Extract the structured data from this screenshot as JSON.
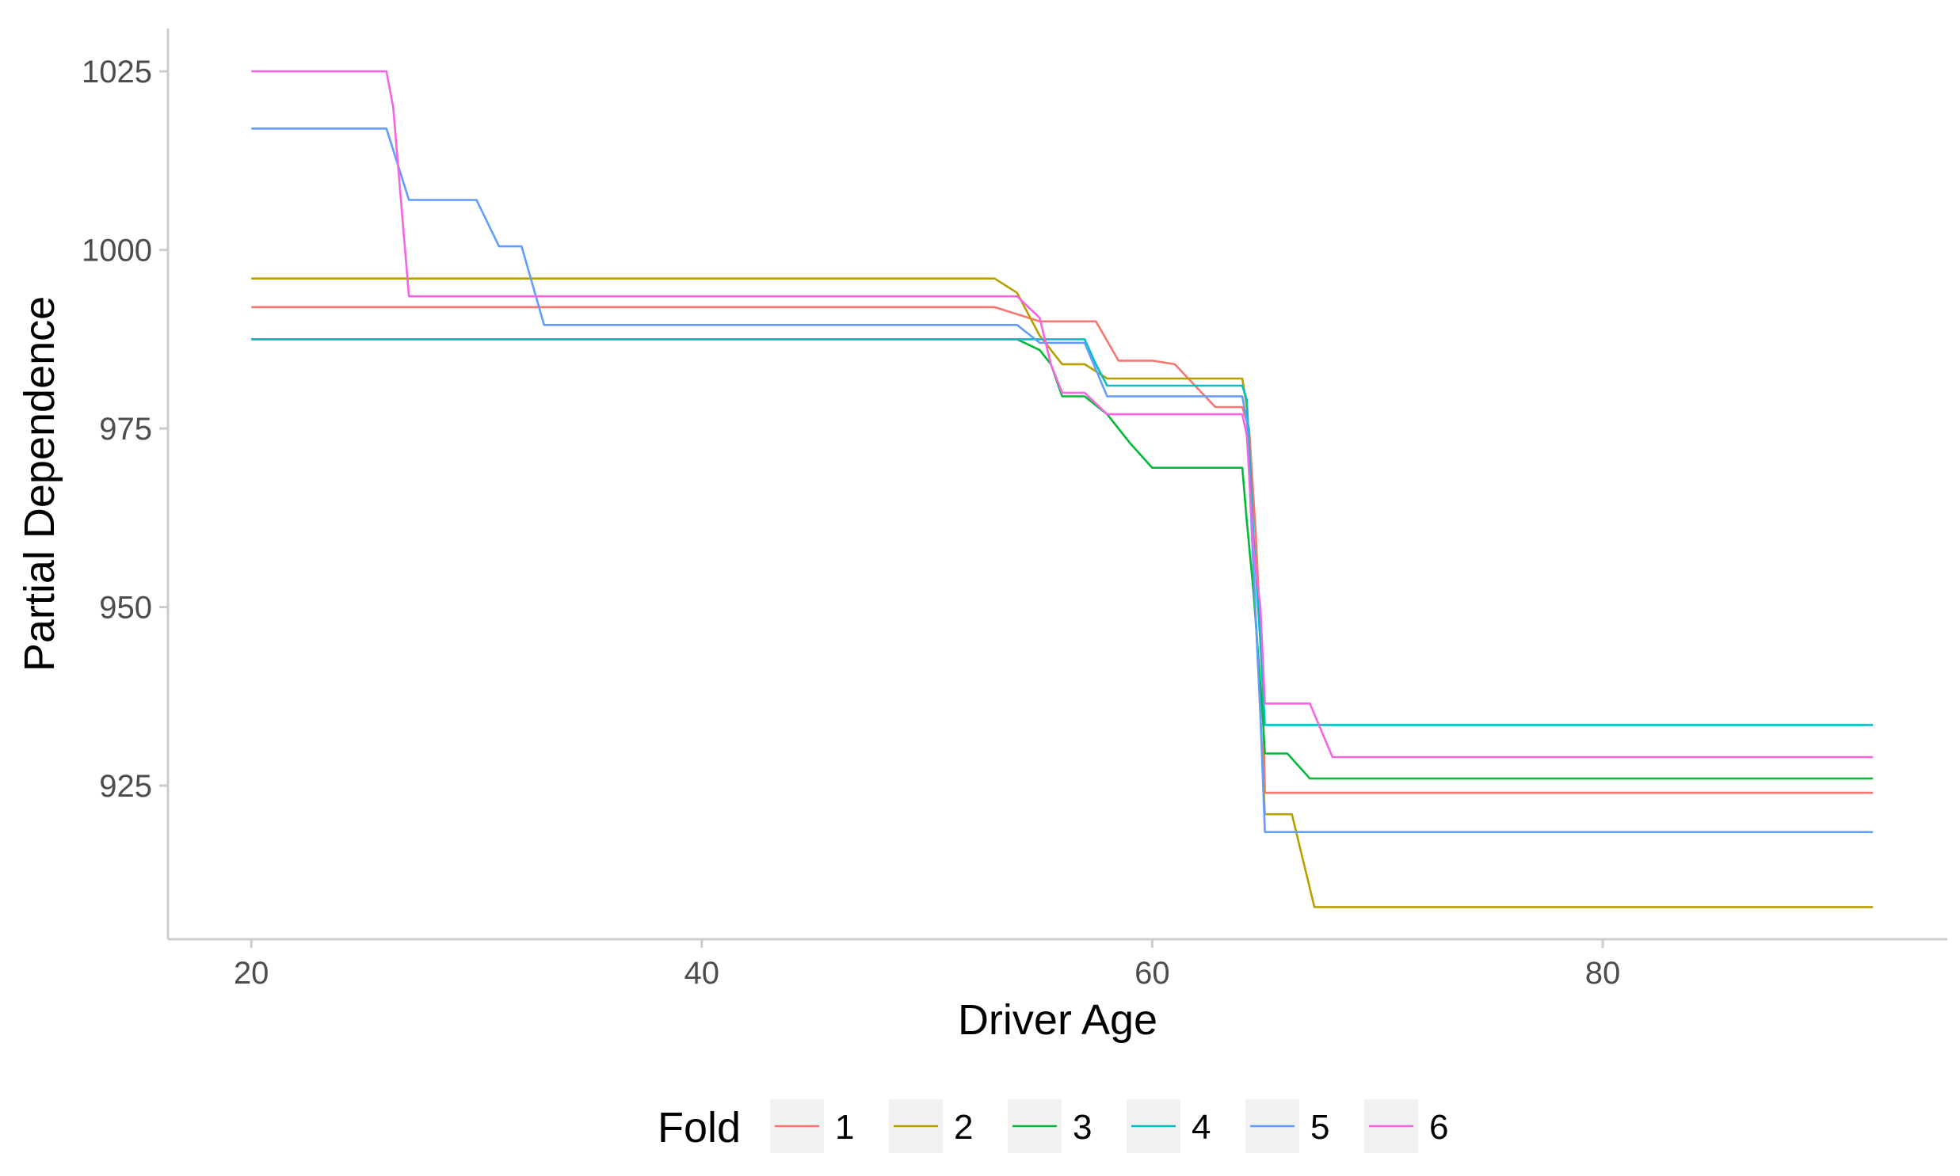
{
  "chart_data": {
    "type": "line",
    "title": "",
    "xlabel": "Driver Age",
    "ylabel": "Partial Dependence",
    "xlim": [
      16.3,
      95.3
    ],
    "ylim": [
      903.5,
      1031
    ],
    "x_ticks": [
      20,
      40,
      60,
      80
    ],
    "y_ticks": [
      925,
      950,
      975,
      1000,
      1025
    ],
    "x_tick_labels": [
      "20",
      "40",
      "60",
      "80"
    ],
    "y_tick_labels": [
      "925",
      "950",
      "975",
      "1000",
      "1025"
    ],
    "grid": false,
    "legend": {
      "title": "Fold",
      "position": "bottom"
    },
    "series": [
      {
        "name": "1",
        "color": "#F8766D",
        "points": [
          [
            20,
            992
          ],
          [
            53,
            992
          ],
          [
            54,
            991
          ],
          [
            55,
            990
          ],
          [
            57.5,
            990
          ],
          [
            58.5,
            984.5
          ],
          [
            60,
            984.5
          ],
          [
            61,
            984
          ],
          [
            62.8,
            978
          ],
          [
            64,
            978
          ],
          [
            64.3,
            975
          ],
          [
            64.6,
            960
          ],
          [
            64.9,
            940
          ],
          [
            65,
            924
          ],
          [
            92,
            924
          ]
        ]
      },
      {
        "name": "2",
        "color": "#B79F00",
        "points": [
          [
            20,
            996
          ],
          [
            53,
            996
          ],
          [
            54,
            994
          ],
          [
            55,
            988
          ],
          [
            56,
            984
          ],
          [
            57,
            984
          ],
          [
            58,
            982
          ],
          [
            64,
            982
          ],
          [
            64.2,
            978
          ],
          [
            64.5,
            955
          ],
          [
            64.8,
            935
          ],
          [
            65,
            921
          ],
          [
            66.2,
            921
          ],
          [
            67.2,
            908
          ],
          [
            92,
            908
          ]
        ]
      },
      {
        "name": "3",
        "color": "#00BA38",
        "points": [
          [
            20,
            987.5
          ],
          [
            54,
            987.5
          ],
          [
            55,
            986
          ],
          [
            55.5,
            984
          ],
          [
            56,
            979.5
          ],
          [
            57,
            979.5
          ],
          [
            58,
            977
          ],
          [
            59,
            973
          ],
          [
            60,
            969.5
          ],
          [
            64,
            969.5
          ],
          [
            64.2,
            962
          ],
          [
            64.5,
            952
          ],
          [
            64.9,
            935
          ],
          [
            65,
            929.5
          ],
          [
            66,
            929.5
          ],
          [
            67,
            926
          ],
          [
            92,
            926
          ]
        ]
      },
      {
        "name": "4",
        "color": "#00BFC4",
        "points": [
          [
            20,
            987.5
          ],
          [
            57,
            987.5
          ],
          [
            57.5,
            984
          ],
          [
            58,
            981
          ],
          [
            64,
            981
          ],
          [
            64.2,
            979
          ],
          [
            64.5,
            960
          ],
          [
            64.8,
            945
          ],
          [
            65,
            933.5
          ],
          [
            92,
            933.5
          ]
        ]
      },
      {
        "name": "5",
        "color": "#619CFF",
        "points": [
          [
            20,
            1017
          ],
          [
            26,
            1017
          ],
          [
            27,
            1007
          ],
          [
            30,
            1007
          ],
          [
            31,
            1000.5
          ],
          [
            32,
            1000.5
          ],
          [
            33,
            989.5
          ],
          [
            54,
            989.5
          ],
          [
            55,
            987
          ],
          [
            57,
            987
          ],
          [
            58,
            979.5
          ],
          [
            64,
            979.5
          ],
          [
            64.2,
            976
          ],
          [
            64.5,
            955
          ],
          [
            64.8,
            935
          ],
          [
            65,
            918.5
          ],
          [
            92,
            918.5
          ]
        ]
      },
      {
        "name": "6",
        "color": "#F564E3",
        "points": [
          [
            20,
            1025
          ],
          [
            26,
            1025
          ],
          [
            26.3,
            1020
          ],
          [
            27,
            993.5
          ],
          [
            54,
            993.5
          ],
          [
            55,
            990.5
          ],
          [
            55.5,
            984
          ],
          [
            56,
            980
          ],
          [
            57,
            980
          ],
          [
            58,
            977
          ],
          [
            64,
            977
          ],
          [
            64.2,
            974
          ],
          [
            64.5,
            958
          ],
          [
            64.8,
            950
          ],
          [
            65,
            936.5
          ],
          [
            67,
            936.5
          ],
          [
            68,
            929
          ],
          [
            92,
            929
          ]
        ]
      }
    ]
  }
}
